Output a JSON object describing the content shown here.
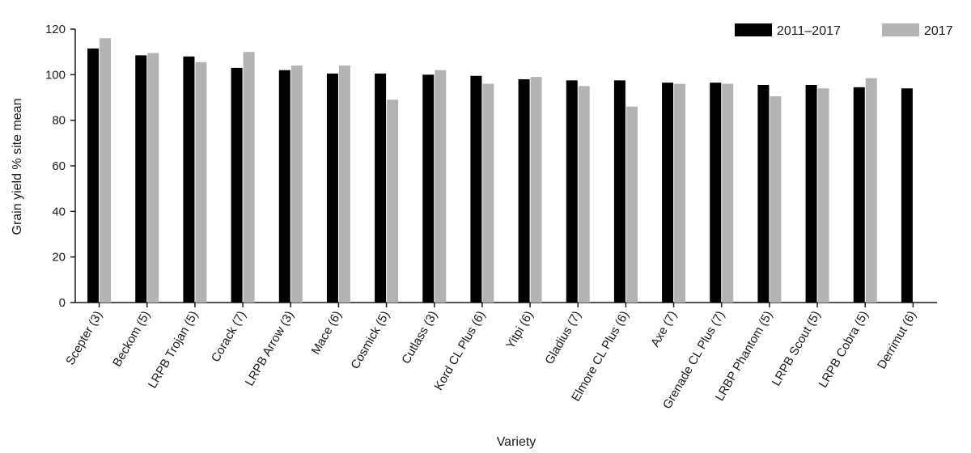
{
  "chart_data": {
    "type": "bar",
    "title": "",
    "xlabel": "Variety",
    "ylabel": "Grain yield % site mean",
    "ylim": [
      0,
      120
    ],
    "yticks": [
      0,
      20,
      40,
      60,
      80,
      100,
      120
    ],
    "grid": false,
    "legend_position": "top-right",
    "categories": [
      "Scepter (3)",
      "Beckom (5)",
      "LRPB Trojan (5)",
      "Corack (7)",
      "LRPB Arrow (3)",
      "Mace (6)",
      "Cosmick (5)",
      "Cutlass (3)",
      "Kord CL Plus (6)",
      "Yitpi (6)",
      "Gladius (7)",
      "Elmore CL Plus (6)",
      "Axe (7)",
      "Grenade CL Plus (7)",
      "LRBP Phantom (5)",
      "LRPB Scout (5)",
      "LRPB Cobra (5)",
      "Derrimut (6)"
    ],
    "series": [
      {
        "name": "2011–2017",
        "color": "#000000",
        "values": [
          111.5,
          108.5,
          108,
          103,
          102,
          100.5,
          100.5,
          100,
          99.5,
          98,
          97.5,
          97.5,
          96.5,
          96.5,
          95.5,
          95.5,
          94.5,
          94
        ]
      },
      {
        "name": "2017",
        "color": "#b3b3b3",
        "values": [
          116,
          109.5,
          105.5,
          110,
          104,
          104,
          89,
          102,
          96,
          99,
          95,
          86,
          96,
          96,
          90.5,
          94,
          98.5,
          null
        ]
      }
    ]
  }
}
